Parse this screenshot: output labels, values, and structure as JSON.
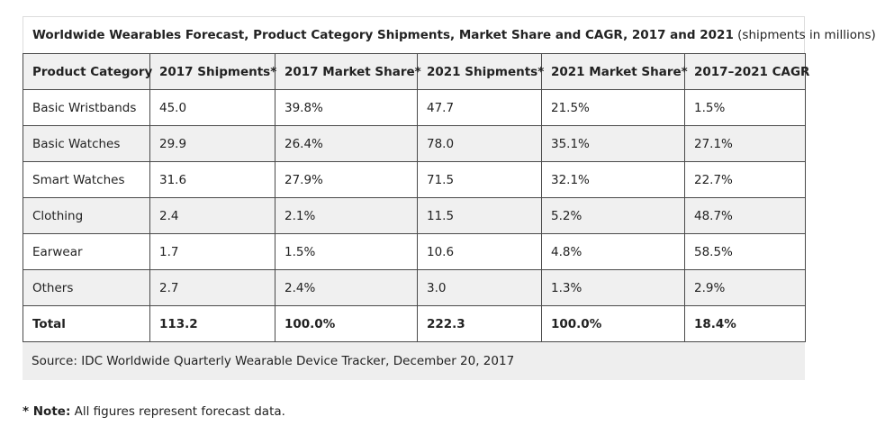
{
  "chart_data": {
    "type": "table",
    "title": "Worldwide Wearables Forecast, Product Category Shipments, Market Share and CAGR, 2017 and 2021",
    "subtitle": "(shipments in millions)",
    "columns": [
      "Product Category",
      "2017 Shipments*",
      "2017 Market Share*",
      "2021 Shipments*",
      "2021 Market Share*",
      "2017–2021 CAGR"
    ],
    "rows": [
      [
        "Basic Wristbands",
        "45.0",
        "39.8%",
        "47.7",
        "21.5%",
        "1.5%"
      ],
      [
        "Basic Watches",
        "29.9",
        "26.4%",
        "78.0",
        "35.1%",
        "27.1%"
      ],
      [
        "Smart Watches",
        "31.6",
        "27.9%",
        "71.5",
        "32.1%",
        "22.7%"
      ],
      [
        "Clothing",
        "2.4",
        "2.1%",
        "11.5",
        "5.2%",
        "48.7%"
      ],
      [
        "Earwear",
        "1.7",
        "1.5%",
        "10.6",
        "4.8%",
        "58.5%"
      ],
      [
        "Others",
        "2.7",
        "2.4%",
        "3.0",
        "1.3%",
        "2.9%"
      ]
    ],
    "total": [
      "Total",
      "113.2",
      "100.0%",
      "222.3",
      "100.0%",
      "18.4%"
    ],
    "source": "Source: IDC Worldwide Quarterly Wearable Device Tracker, December 20, 2017"
  },
  "note": {
    "lead": "* Note:",
    "text": " All figures represent forecast data."
  }
}
